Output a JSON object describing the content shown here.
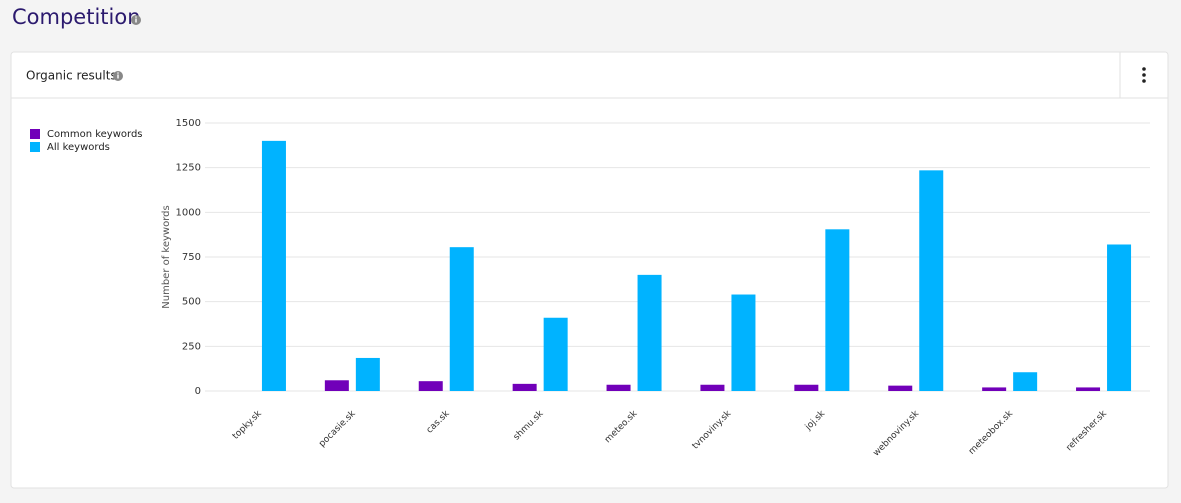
{
  "header": {
    "title": "Competition"
  },
  "card": {
    "title": "Organic results"
  },
  "chart_data": {
    "type": "bar",
    "categories": [
      "topky.sk",
      "pocasie.sk",
      "cas.sk",
      "shmu.sk",
      "meteo.sk",
      "tvnoviny.sk",
      "joj.sk",
      "webnoviny.sk",
      "meteobox.sk",
      "refresher.sk"
    ],
    "series": [
      {
        "name": "Common keywords",
        "color": "#7100b9",
        "values": [
          0,
          60,
          55,
          40,
          35,
          35,
          35,
          30,
          20,
          20
        ]
      },
      {
        "name": "All keywords",
        "color": "#00b3ff",
        "values": [
          1400,
          185,
          805,
          410,
          650,
          540,
          905,
          1235,
          105,
          820
        ]
      }
    ],
    "y_label": "Number of keywords",
    "ylim": [
      0,
      1500
    ],
    "yticks": [
      0,
      250,
      500,
      750,
      1000,
      1250,
      1500
    ],
    "grid": true,
    "legend": "top-left"
  }
}
